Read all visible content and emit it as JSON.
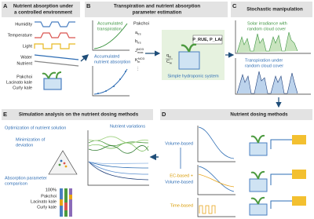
{
  "panel_a": {
    "letter": "A",
    "title_lines": [
      "Nutrient absorption under",
      "a controlled environment"
    ],
    "factors": [
      "Humidity",
      "Temperature",
      "Light",
      "Water",
      "Nutrient"
    ],
    "crops": [
      "Pakchoi",
      "Lacinato kale",
      "Curly kale"
    ]
  },
  "panel_b": {
    "letter": "B",
    "title_lines": [
      "Transpiration and nutrient absorption",
      "parameter estimation"
    ],
    "transpiration_lines": [
      "Accumulated",
      "transpiration"
    ],
    "absorption_lines": [
      "Accumulated",
      "nutrient absorption"
    ],
    "crop": "Pakchoi",
    "params": [
      {
        "base": "a",
        "sub": "trs"
      },
      {
        "base": "b",
        "sub": "trs"
      },
      {
        "base": "J",
        "sub": "max",
        "sup": "NO3"
      },
      {
        "base": "K",
        "sub": "m",
        "sup": "NO3"
      }
    ],
    "ellipsis": "⋮",
    "flow": {
      "base": "q",
      "sub": "w"
    },
    "conc": {
      "base": "C",
      "sub": "w"
    },
    "model_params": "P_RUE, P_LAI",
    "system": "Simple hydroponic system"
  },
  "panel_c": {
    "letter": "C",
    "title": "Stochastic manipulation",
    "solar_lines": [
      "Solar irradiance with",
      "random cloud cover"
    ],
    "transpiration_lines": [
      "Transpiration under",
      "random cloud cover"
    ]
  },
  "panel_d": {
    "letter": "D",
    "title": "Nutrient dosing methods",
    "methods": [
      "Volume-based",
      "EC-based +",
      "Volume-based",
      "Time-based"
    ]
  },
  "panel_e": {
    "letter": "E",
    "title": "Simulation analysis on the nutrient dosing methods",
    "optimization": "Optimization of nutrient solution",
    "minimization_lines": [
      "Minimization of",
      "deviation"
    ],
    "comparison_lines": [
      "Absorption parameter",
      "comparison"
    ],
    "percent": "100%",
    "crops": [
      "Pakchoi",
      "Lacinato kale",
      "Curly kale"
    ],
    "variations": "Nutrient variations"
  }
}
